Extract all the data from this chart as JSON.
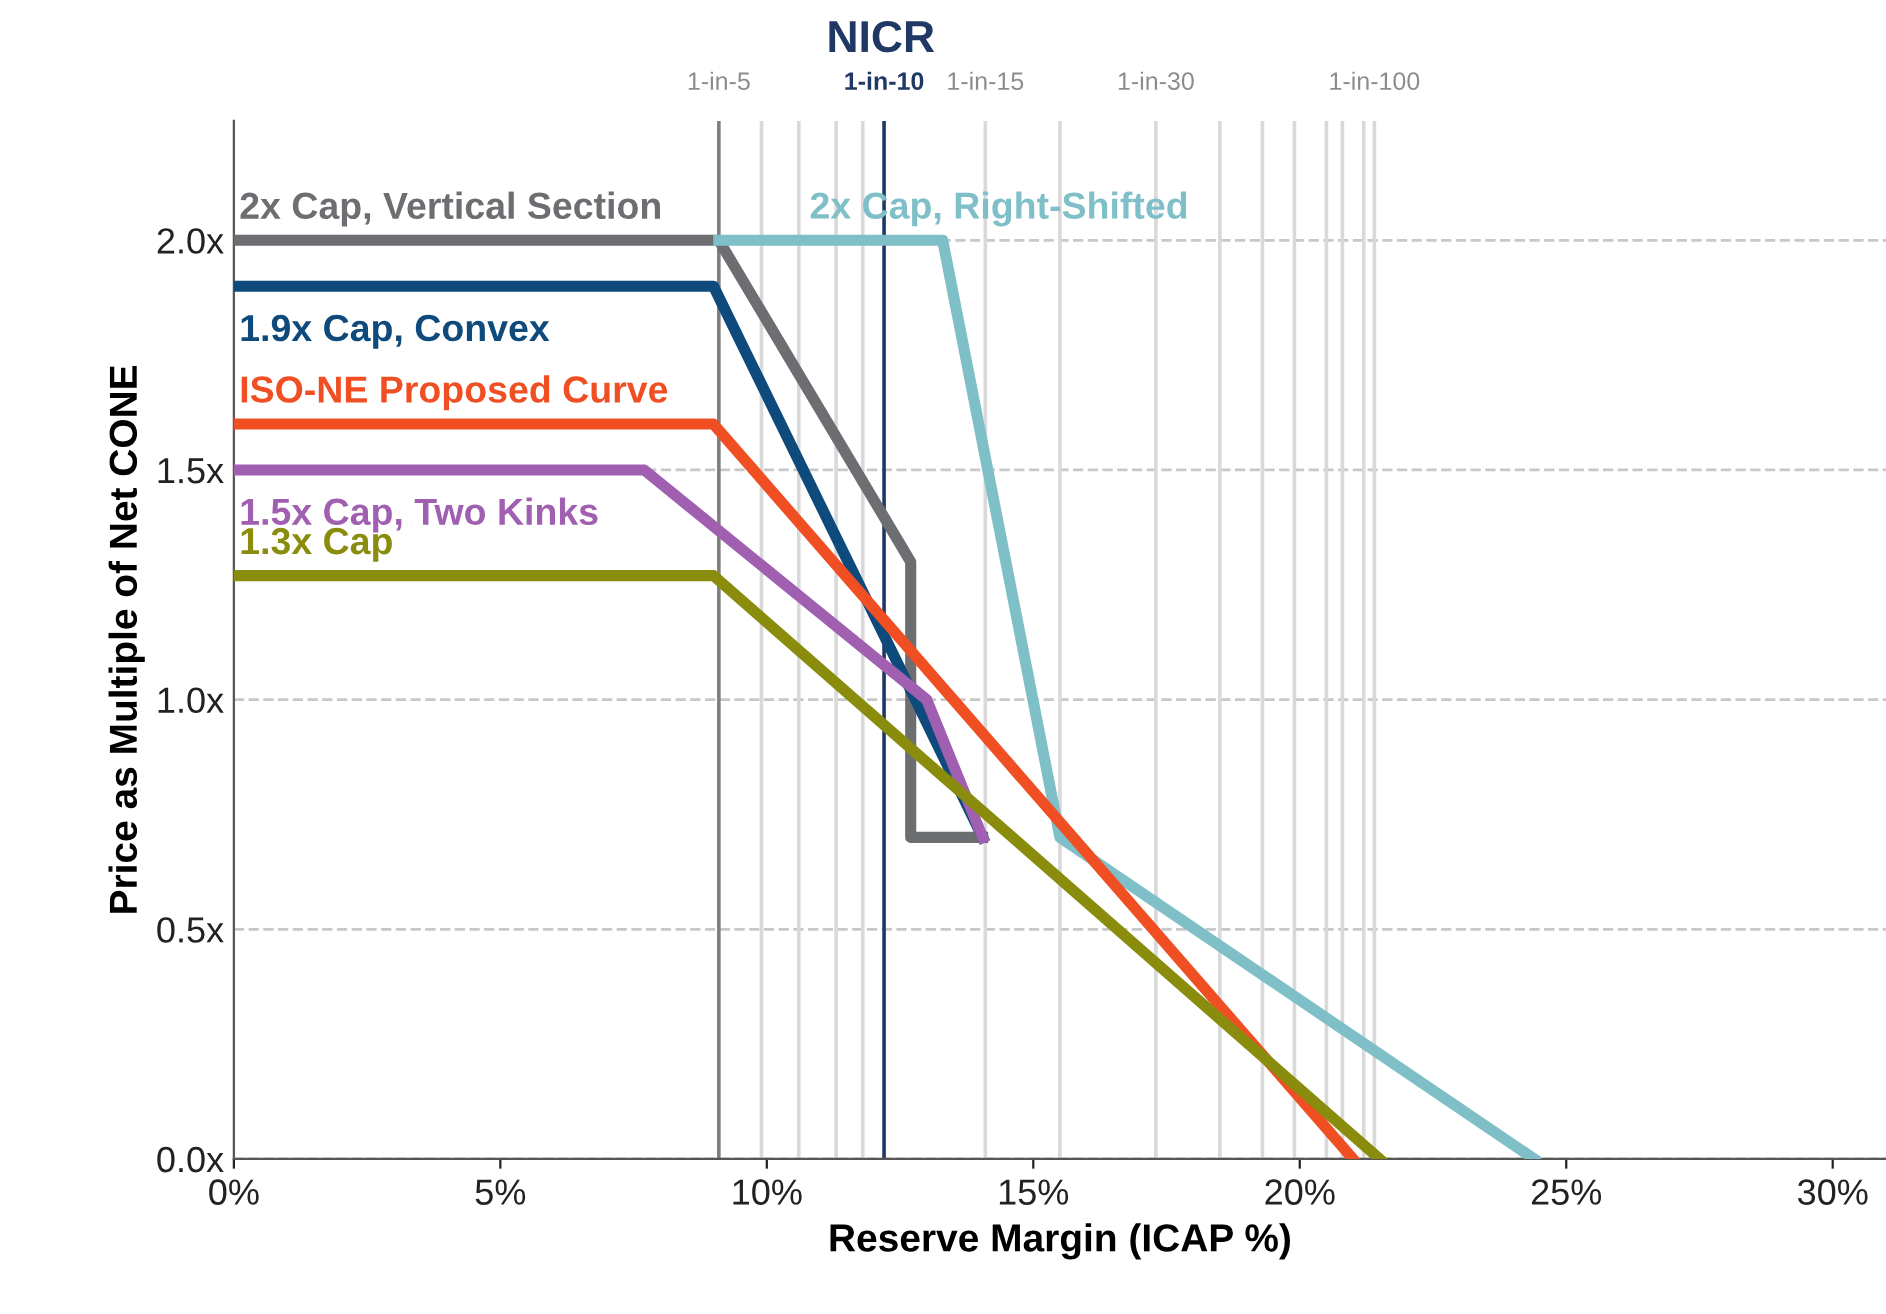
{
  "chart_data": {
    "type": "line",
    "xlabel": "Reserve Margin (ICAP %)",
    "ylabel": "Price as Multiple of Net CONE",
    "annotations": [
      "NICR"
    ],
    "series": [
      {
        "name": "2x Cap, Vertical Section",
        "color": "#6d6e71",
        "x": [
          0,
          9.1,
          12.7,
          12.7,
          14.05
        ],
        "values": [
          2.0,
          2.0,
          1.3,
          0.7,
          0.7
        ]
      },
      {
        "name": "2x Cap, Right-Shifted",
        "color": "#7fbfc8",
        "x": [
          9.1,
          13.3,
          15.5,
          24.4
        ],
        "values": [
          2.0,
          2.0,
          0.7,
          0.0
        ]
      },
      {
        "name": "1.9x Cap, Convex",
        "color": "#0e4a7c",
        "x": [
          0,
          9.0,
          14.05
        ],
        "values": [
          1.9,
          1.9,
          0.7
        ]
      },
      {
        "name": "ISO-NE Proposed Curve",
        "color": "#f04e23",
        "x": [
          0,
          9.0,
          21.0
        ],
        "values": [
          1.6,
          1.6,
          0.0
        ]
      },
      {
        "name": "1.5x Cap, Two Kinks",
        "color": "#a05fb0",
        "x": [
          0,
          7.7,
          13.0,
          14.05
        ],
        "values": [
          1.5,
          1.5,
          1.0,
          0.7
        ]
      },
      {
        "name": "1.3x Cap",
        "color": "#8a8c0e",
        "x": [
          0,
          9.0,
          21.5
        ],
        "values": [
          1.27,
          1.27,
          0.0
        ]
      }
    ],
    "ref_lines": [
      {
        "axis": "x",
        "value": 9.1,
        "label": "1-in-5",
        "color": "#7f7f7f"
      },
      {
        "axis": "x",
        "value": 9.9,
        "color": "#d9d9d9"
      },
      {
        "axis": "x",
        "value": 10.6,
        "color": "#d9d9d9"
      },
      {
        "axis": "x",
        "value": 11.3,
        "color": "#d9d9d9"
      },
      {
        "axis": "x",
        "value": 11.8,
        "color": "#d9d9d9"
      },
      {
        "axis": "x",
        "value": 12.2,
        "label": "1-in-10",
        "color": "#1f3864"
      },
      {
        "axis": "x",
        "value": 14.1,
        "label": "1-in-15",
        "color": "#d9d9d9"
      },
      {
        "axis": "x",
        "value": 15.5,
        "color": "#d9d9d9"
      },
      {
        "axis": "x",
        "value": 17.3,
        "label": "1-in-30",
        "color": "#d9d9d9"
      },
      {
        "axis": "x",
        "value": 18.5,
        "color": "#d9d9d9"
      },
      {
        "axis": "x",
        "value": 19.3,
        "color": "#d9d9d9"
      },
      {
        "axis": "x",
        "value": 19.9,
        "color": "#d9d9d9"
      },
      {
        "axis": "x",
        "value": 20.5,
        "color": "#d9d9d9"
      },
      {
        "axis": "x",
        "value": 20.8,
        "color": "#d9d9d9"
      },
      {
        "axis": "x",
        "value": 21.2,
        "color": "#d9d9d9"
      },
      {
        "axis": "x",
        "value": 21.4,
        "label": "1-in-100",
        "color": "#d9d9d9"
      }
    ],
    "xlim": [
      0,
      31
    ],
    "ylim": [
      0,
      2.26
    ],
    "xticks": [
      {
        "value": 0,
        "label": "0%"
      },
      {
        "value": 5,
        "label": "5%"
      },
      {
        "value": 10,
        "label": "10%"
      },
      {
        "value": 15,
        "label": "15%"
      },
      {
        "value": 20,
        "label": "20%"
      },
      {
        "value": 25,
        "label": "25%"
      },
      {
        "value": 30,
        "label": "30%"
      }
    ],
    "yticks": [
      {
        "value": 0,
        "label": "0.0x"
      },
      {
        "value": 0.5,
        "label": "0.5x"
      },
      {
        "value": 1.0,
        "label": "1.0x"
      },
      {
        "value": 1.5,
        "label": "1.5x"
      },
      {
        "value": 2.0,
        "label": "2.0x"
      }
    ],
    "grid": "y",
    "legend": false,
    "marker": "none",
    "line_style": "solid"
  }
}
